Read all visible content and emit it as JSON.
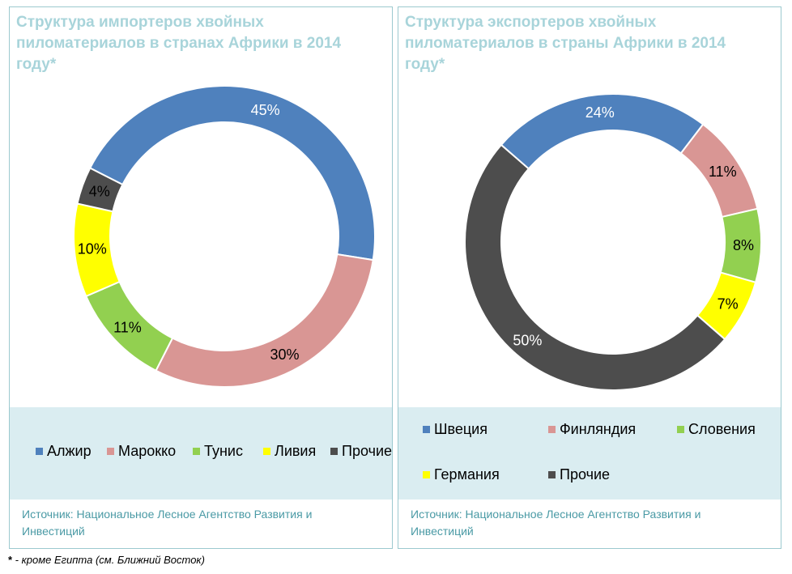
{
  "footnote": {
    "marker": "*",
    "text": " - кроме Египта (см. Ближний Восток)"
  },
  "chart_data": [
    {
      "type": "pie",
      "title": "Структура импортеров хвойных пиломатериалов в странах Африки в 2014 году*",
      "categories": [
        "Алжир",
        "Марокко",
        "Тунис",
        "Ливия",
        "Прочие"
      ],
      "values": [
        45,
        30,
        11,
        10,
        4
      ],
      "data_labels": [
        "45%",
        "30%",
        "11%",
        "10%",
        "4%"
      ],
      "colors": [
        "#4f81bd",
        "#d99694",
        "#92d050",
        "#ffff00",
        "#4d4d4d"
      ],
      "label_colors": [
        "#ffffff",
        "#000000",
        "#000000",
        "#000000",
        "#000000"
      ],
      "legend_position": "bottom",
      "source": "Источник: Национальное Лесное Агентство Развития и Инвестиций"
    },
    {
      "type": "pie",
      "title": "Структура экспортеров хвойных пиломатериалов в страны Африки в 2014 году*",
      "categories": [
        "Швеция",
        "Финляндия",
        "Словения",
        "Германия",
        "Прочие"
      ],
      "values": [
        24,
        11,
        8,
        7,
        50
      ],
      "data_labels": [
        "24%",
        "11%",
        "8%",
        "7%",
        "50%"
      ],
      "colors": [
        "#4f81bd",
        "#d99694",
        "#92d050",
        "#ffff00",
        "#4d4d4d"
      ],
      "label_colors": [
        "#ffffff",
        "#000000",
        "#000000",
        "#000000",
        "#ffffff"
      ],
      "legend_position": "bottom",
      "source": "Источник: Национальное Лесное Агентство Развития и Инвестиций"
    }
  ]
}
